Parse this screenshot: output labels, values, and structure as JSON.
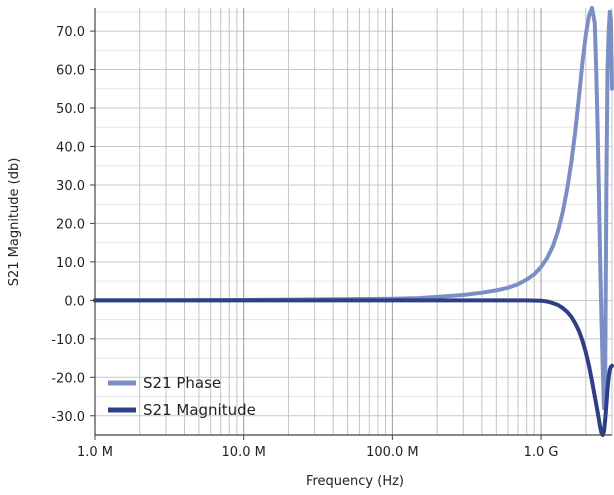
{
  "chart_data": {
    "type": "line",
    "xlabel": "Frequency (Hz)",
    "ylabel": "S21 Magnitude (db)",
    "x_scale": "log",
    "xlim": [
      1000000,
      3000000000
    ],
    "ylim": [
      -35,
      76
    ],
    "grid": true,
    "legend_position": "bottom-left",
    "x_ticks": [
      {
        "value": 1000000,
        "label": "1.0 M"
      },
      {
        "value": 10000000,
        "label": "10.0 M"
      },
      {
        "value": 100000000,
        "label": "100.0 M"
      },
      {
        "value": 1000000000,
        "label": "1.0 G"
      }
    ],
    "y_ticks": [
      {
        "value": 70,
        "label": "70.0"
      },
      {
        "value": 60,
        "label": "60.0"
      },
      {
        "value": 50,
        "label": "50.0"
      },
      {
        "value": 40,
        "label": "40.0"
      },
      {
        "value": 30,
        "label": "30.0"
      },
      {
        "value": 20,
        "label": "20.0"
      },
      {
        "value": 10,
        "label": "10.0"
      },
      {
        "value": 0,
        "label": "0.0"
      },
      {
        "value": -10,
        "label": "-10.0"
      },
      {
        "value": -20,
        "label": "-20.0"
      },
      {
        "value": -30,
        "label": "-30.0"
      }
    ],
    "series": [
      {
        "name": "S21 Phase",
        "color": "#7b8fc4",
        "x": [
          1000000,
          10000000,
          100000000,
          150000000,
          200000000,
          300000000,
          400000000,
          500000000,
          600000000,
          700000000,
          800000000,
          900000000,
          1000000000,
          1100000000,
          1200000000,
          1300000000,
          1400000000,
          1500000000,
          1600000000,
          1700000000,
          1800000000,
          1900000000,
          2000000000,
          2100000000,
          2200000000,
          2300000000,
          2350000000,
          2400000000,
          2450000000,
          2500000000,
          2550000000,
          2600000000,
          2650000000,
          2700000000,
          2750000000,
          2800000000,
          2850000000,
          2900000000,
          2950000000,
          3000000000
        ],
        "y": [
          0,
          0.1,
          0.4,
          0.6,
          0.9,
          1.4,
          2.0,
          2.6,
          3.3,
          4.2,
          5.4,
          6.8,
          8.7,
          11,
          14,
          18,
          23,
          29,
          36,
          44,
          53,
          62,
          69,
          74,
          76,
          72,
          60,
          45,
          28,
          10,
          -5,
          -18,
          -28,
          -20,
          30,
          60,
          70,
          75,
          73,
          55
        ]
      },
      {
        "name": "S21 Magnitude",
        "color": "#2f3f86",
        "x": [
          1000000,
          10000000,
          100000000,
          500000000,
          800000000,
          1000000000,
          1100000000,
          1200000000,
          1300000000,
          1400000000,
          1500000000,
          1600000000,
          1700000000,
          1800000000,
          1900000000,
          2000000000,
          2100000000,
          2150000000,
          2200000000,
          2250000000,
          2300000000,
          2350000000,
          2400000000,
          2450000000,
          2500000000,
          2550000000,
          2600000000,
          2650000000,
          2700000000,
          2750000000,
          2800000000,
          2850000000,
          2900000000,
          2950000000,
          3000000000
        ],
        "y": [
          0,
          0,
          0,
          0,
          0,
          -0.1,
          -0.3,
          -0.7,
          -1.2,
          -2,
          -3,
          -4.3,
          -6,
          -8,
          -10.5,
          -13.5,
          -17,
          -19,
          -21,
          -23,
          -25,
          -27,
          -29,
          -31,
          -33,
          -34.5,
          -35,
          -34,
          -31,
          -27,
          -23,
          -20,
          -18,
          -17.3,
          -17
        ]
      }
    ]
  }
}
